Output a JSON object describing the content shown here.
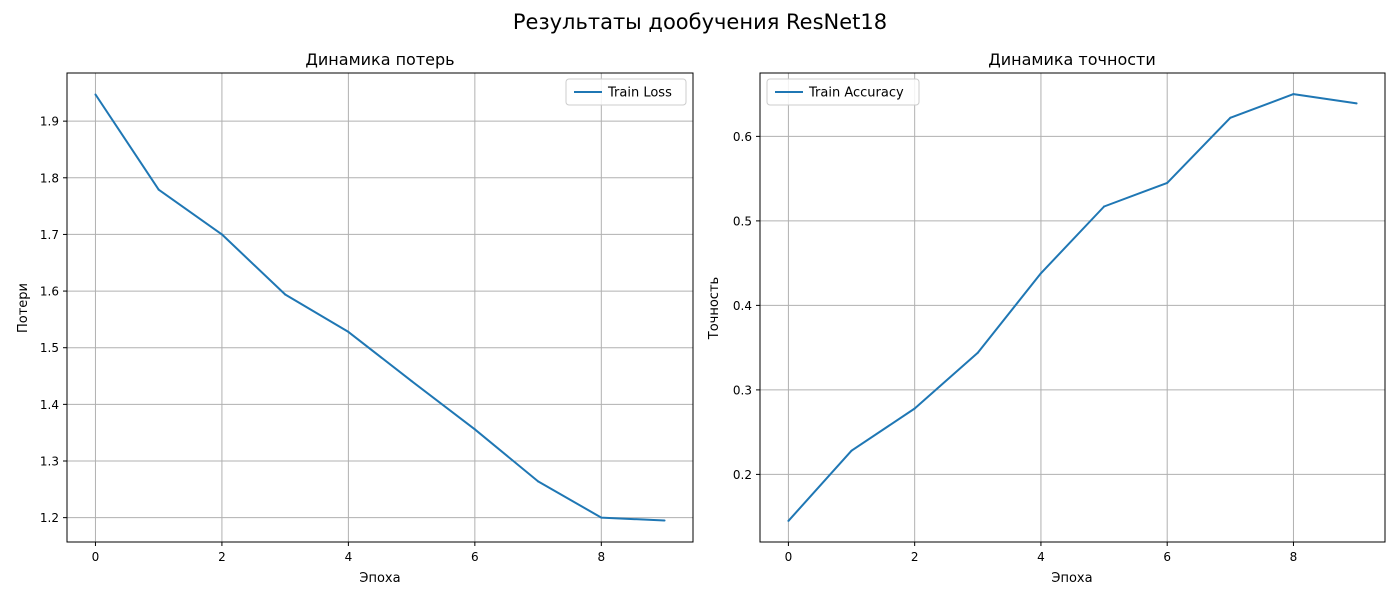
{
  "figure": {
    "suptitle": "Результаты дообучения ResNet18"
  },
  "colors": {
    "line": "#1f77b4",
    "grid": "#b0b0b0",
    "axes": "#000000"
  },
  "chart_data": [
    {
      "type": "line",
      "title": "Динамика потерь",
      "xlabel": "Эпоха",
      "ylabel": "Потери",
      "x": [
        0,
        1,
        2,
        3,
        4,
        5,
        6,
        7,
        8,
        9
      ],
      "series": [
        {
          "name": "Train Loss",
          "values": [
            1.947,
            1.779,
            1.7,
            1.594,
            1.528,
            1.441,
            1.356,
            1.264,
            1.2,
            1.195
          ]
        }
      ],
      "xlim": [
        -0.45,
        9.45
      ],
      "ylim": [
        1.157,
        1.985
      ],
      "xticks": [
        0,
        2,
        4,
        6,
        8
      ],
      "yticks": [
        1.2,
        1.3,
        1.4,
        1.5,
        1.6,
        1.7,
        1.8,
        1.9
      ],
      "ytick_labels": [
        "1.2",
        "1.3",
        "1.4",
        "1.5",
        "1.6",
        "1.7",
        "1.8",
        "1.9"
      ],
      "grid": true,
      "legend": "upper right"
    },
    {
      "type": "line",
      "title": "Динамика точности",
      "xlabel": "Эпоха",
      "ylabel": "Точность",
      "x": [
        0,
        1,
        2,
        3,
        4,
        5,
        6,
        7,
        8,
        9
      ],
      "series": [
        {
          "name": "Train Accuracy",
          "values": [
            0.145,
            0.228,
            0.278,
            0.344,
            0.438,
            0.517,
            0.545,
            0.622,
            0.65,
            0.639
          ]
        }
      ],
      "xlim": [
        -0.45,
        9.45
      ],
      "ylim": [
        0.12,
        0.675
      ],
      "xticks": [
        0,
        2,
        4,
        6,
        8
      ],
      "yticks": [
        0.2,
        0.3,
        0.4,
        0.5,
        0.6
      ],
      "ytick_labels": [
        "0.2",
        "0.3",
        "0.4",
        "0.5",
        "0.6"
      ],
      "grid": true,
      "legend": "upper left"
    }
  ]
}
